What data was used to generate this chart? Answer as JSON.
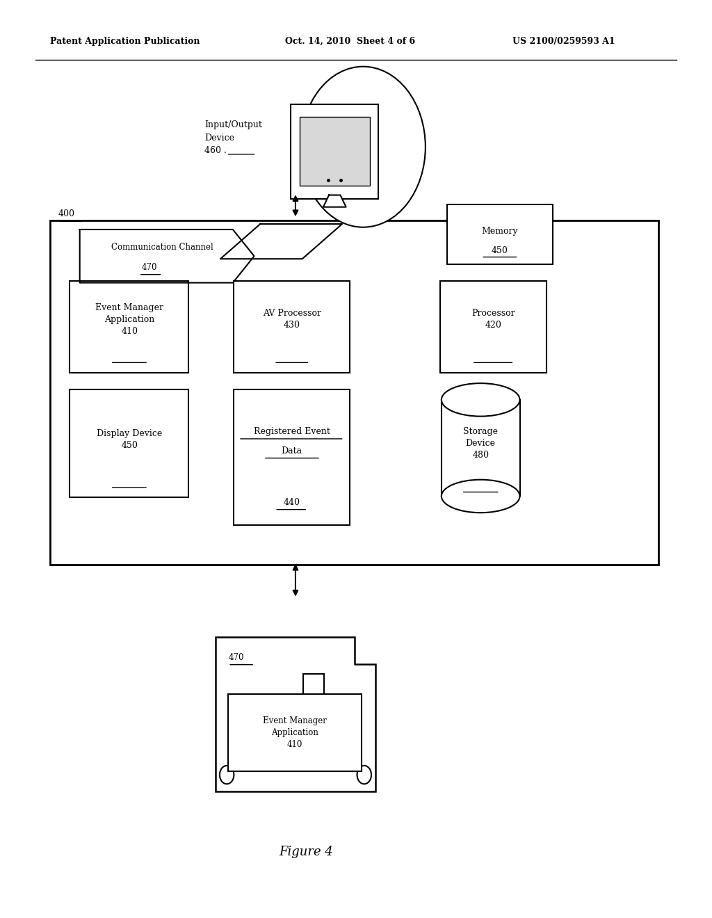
{
  "bg_color": "#ffffff",
  "header_left": "Patent Application Publication",
  "header_center": "Oct. 14, 2010  Sheet 4 of 6",
  "header_right": "US 2100/0259593 A1",
  "figure_label": "Figure 4"
}
